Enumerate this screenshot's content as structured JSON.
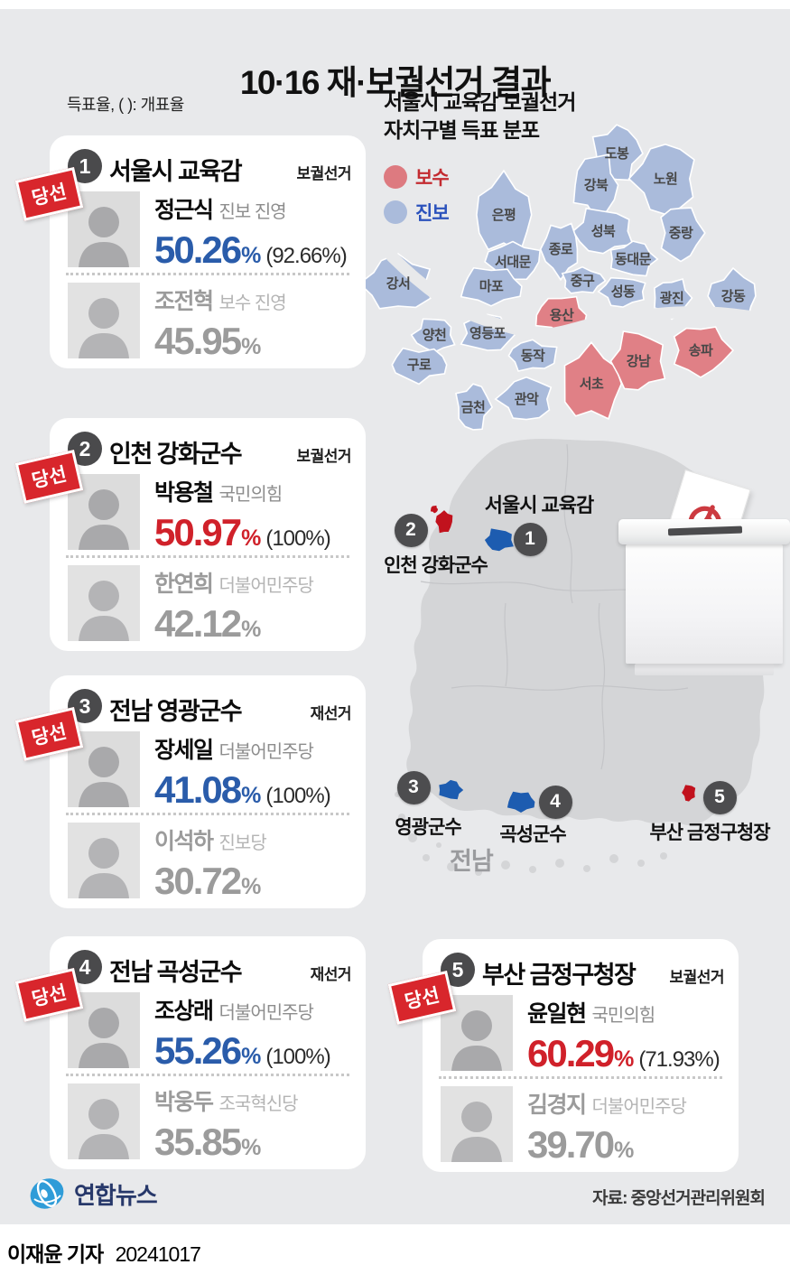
{
  "page": {
    "title": "10·16 재·보궐선거 결과",
    "note": "득표율, ( ): 개표율",
    "source": "자료: 중앙선거관리위원회",
    "credit_name": "이재윤 기자",
    "credit_date": "20241017",
    "logo_text": "연합뉴스"
  },
  "labels": {
    "percent": "%",
    "elected": "당선"
  },
  "seoul_map": {
    "title_line1": "서울시 교육감 보궐선거",
    "title_line2": "자치구별 득표 분포",
    "legend": [
      {
        "label": "보수",
        "swatch": "#dd7a80",
        "text_color": "#c32b30"
      },
      {
        "label": "진보",
        "swatch": "#aabbdb",
        "text_color": "#2b52bc"
      }
    ],
    "districts": [
      {
        "name": "도봉",
        "party": "진보"
      },
      {
        "name": "노원",
        "party": "진보"
      },
      {
        "name": "강북",
        "party": "진보"
      },
      {
        "name": "은평",
        "party": "진보"
      },
      {
        "name": "성북",
        "party": "진보"
      },
      {
        "name": "중랑",
        "party": "진보"
      },
      {
        "name": "서대문",
        "party": "진보"
      },
      {
        "name": "종로",
        "party": "진보"
      },
      {
        "name": "동대문",
        "party": "진보"
      },
      {
        "name": "강서",
        "party": "진보"
      },
      {
        "name": "마포",
        "party": "진보"
      },
      {
        "name": "중구",
        "party": "진보"
      },
      {
        "name": "성동",
        "party": "진보"
      },
      {
        "name": "광진",
        "party": "진보"
      },
      {
        "name": "강동",
        "party": "진보"
      },
      {
        "name": "양천",
        "party": "진보"
      },
      {
        "name": "영등포",
        "party": "진보"
      },
      {
        "name": "동작",
        "party": "진보"
      },
      {
        "name": "구로",
        "party": "진보"
      },
      {
        "name": "금천",
        "party": "진보"
      },
      {
        "name": "관악",
        "party": "진보"
      },
      {
        "name": "용산",
        "party": "보수"
      },
      {
        "name": "서초",
        "party": "보수"
      },
      {
        "name": "강남",
        "party": "보수"
      },
      {
        "name": "송파",
        "party": "보수"
      }
    ]
  },
  "korea_map": {
    "region_label": "전남",
    "markers": [
      {
        "num": "1",
        "label": "서울시 교육감",
        "spot_party": "진보"
      },
      {
        "num": "2",
        "label": "인천 강화군수",
        "spot_party": "보수"
      },
      {
        "num": "3",
        "label": "영광군수",
        "spot_party": "진보"
      },
      {
        "num": "4",
        "label": "곡성군수",
        "spot_party": "진보"
      },
      {
        "num": "5",
        "label": "부산 금정구청장",
        "spot_party": "보수"
      }
    ]
  },
  "cards": [
    {
      "num": "1",
      "title": "서울시 교육감",
      "type": "보궐선거",
      "winner": {
        "name": "정근식",
        "party": "진보 진영",
        "pct": "50.26",
        "count": "(92.66%)",
        "colorKey": "blue"
      },
      "runner": {
        "name": "조전혁",
        "party": "보수 진영",
        "pct": "45.95"
      }
    },
    {
      "num": "2",
      "title": "인천 강화군수",
      "type": "보궐선거",
      "winner": {
        "name": "박용철",
        "party": "국민의힘",
        "pct": "50.97",
        "count": "(100%)",
        "colorKey": "red"
      },
      "runner": {
        "name": "한연희",
        "party": "더불어민주당",
        "pct": "42.12"
      }
    },
    {
      "num": "3",
      "title": "전남 영광군수",
      "type": "재선거",
      "winner": {
        "name": "장세일",
        "party": "더불어민주당",
        "pct": "41.08",
        "count": "(100%)",
        "colorKey": "blue"
      },
      "runner": {
        "name": "이석하",
        "party": "진보당",
        "pct": "30.72"
      }
    },
    {
      "num": "4",
      "title": "전남 곡성군수",
      "type": "재선거",
      "winner": {
        "name": "조상래",
        "party": "더불어민주당",
        "pct": "55.26",
        "count": "(100%)",
        "colorKey": "blue"
      },
      "runner": {
        "name": "박웅두",
        "party": "조국혁신당",
        "pct": "35.85"
      }
    },
    {
      "num": "5",
      "title": "부산 금정구청장",
      "type": "보궐선거",
      "winner": {
        "name": "윤일현",
        "party": "국민의힘",
        "pct": "60.29",
        "count": "(71.93%)",
        "colorKey": "red"
      },
      "runner": {
        "name": "김경지",
        "party": "더불어민주당",
        "pct": "39.70"
      }
    }
  ],
  "colors": {
    "background": "#e8e9eb",
    "card": "#ffffff",
    "win_blue": "#2a5caa",
    "win_red": "#d0212a",
    "runner_gray": "#9b9b9b",
    "stamp_red": "#d8262c",
    "map_conservative": "#e08086",
    "map_progressive": "#aabbdb",
    "spot_conservative": "#c1121d",
    "spot_progressive": "#1d5cb0",
    "korea_land": "#d4d5d7",
    "vote_mark_red": "#cc3a40"
  }
}
